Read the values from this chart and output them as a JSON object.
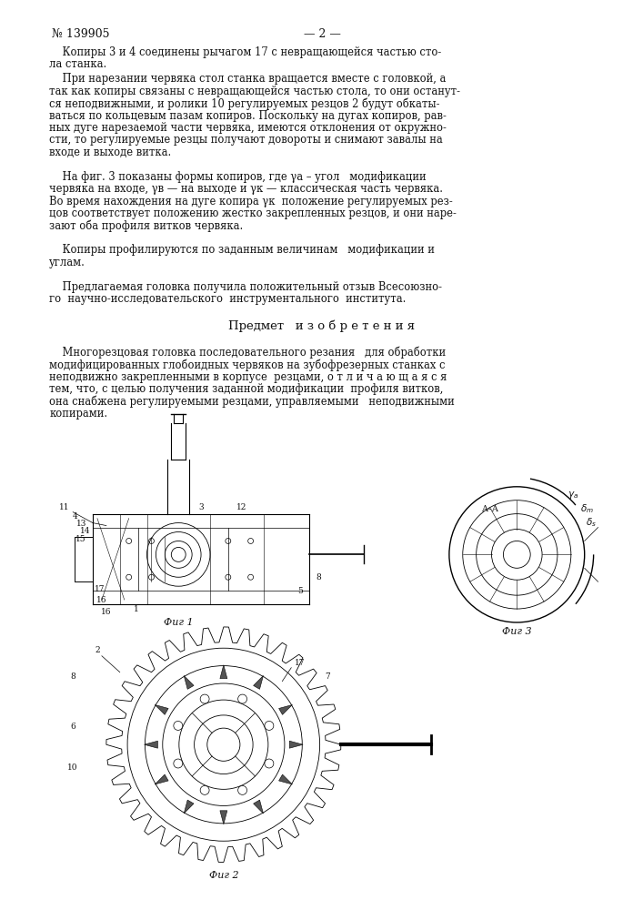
{
  "background_color": "#ffffff",
  "page_number_left": "№ 139905",
  "page_number_center": "— 2 —",
  "header_fontsize": 9,
  "body_fontsize": 8.3,
  "title_section": "Предмет   и з о б р е т е н и я",
  "fig1_caption": "Фиг 1",
  "fig2_caption": "Фиг 2",
  "fig3_caption": "Фиг 3",
  "para1": "    Копиры 3 и 4 соединены рычагом 17 с невращающейся частью сто-\nла станка.",
  "para2": "    При нарезании червяка стол станка вращается вместе с головкой, а\nтак как копиры связаны с невращающейся частью стола, то они останут-\nся неподвижными, и ролики 10 регулируемых резцов 2 будут обкаты-\nваться по кольцевым пазам копиров. Поскольку на дугах копиров, рав-\nных дуге нарезаемой части червяка, имеются отклонения от окружно-\nсти, то регулируемые резцы получают довороты и снимают завалы на\nвходе и выходе витка.",
  "para3": "    На фиг. 3 показаны формы копиров, где γа – угол   модификации\nчервяка на входе, γв — на выходе и γк — классическая часть червяка.\nВо время нахождения на дуге копира γк  положение регулируемых рез-\nцов соответствует положению жестко закрепленных резцов, и они наре-\nзают оба профиля витков червяка.",
  "para4": "    Копиры профилируются по заданным величинам   модификации и\nуглам.",
  "para5": "    Предлагаемая головка получила положительный отзыв Всесоюзно-\nго  научно-исследовательского  инструментального  института.",
  "claim": "    Многорезцовая головка последовательного резания   для обработки\nмодифицированных глобоидных червяков на зубофрезерных станках с\nнеподвижно закрепленными в корпусе  резцами, о т л и ч а ю щ а я с я\nтем, что, с целью получения заданной модификации  профиля витков,\nона снабжена регулируемыми резцами, управляемыми   неподвижными\nкопирами."
}
